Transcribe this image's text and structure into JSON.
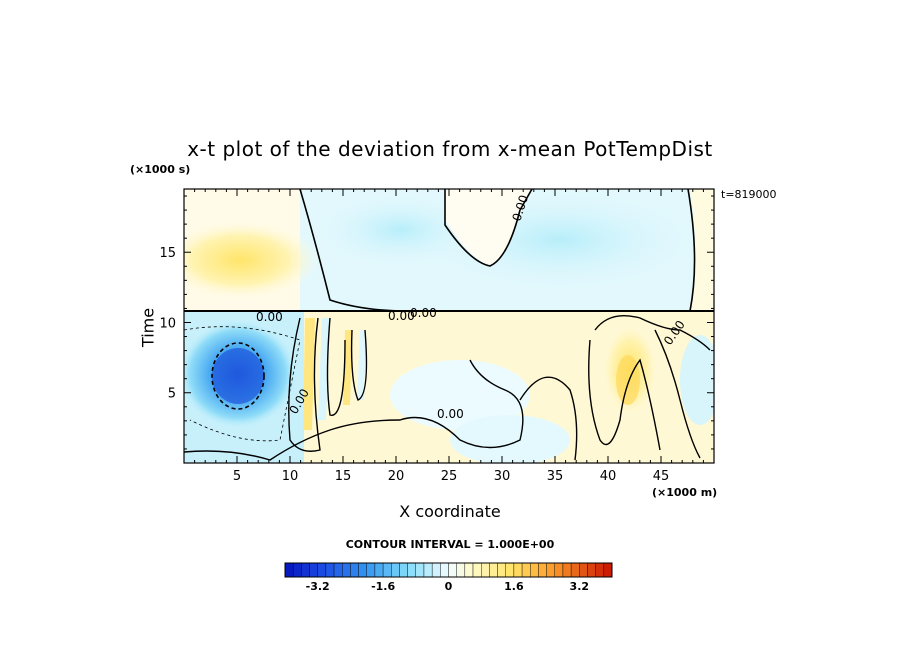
{
  "chart_data": {
    "type": "heatmap",
    "title": "x-t plot of the deviation from x-mean PotTempDist",
    "xlabel": "X coordinate",
    "ylabel": "Time",
    "x_unit": "(×1000 m)",
    "y_unit": "(×1000 s)",
    "timestamp": "t=819000",
    "xlim": [
      0,
      50
    ],
    "ylim": [
      0,
      19.5
    ],
    "x_ticks": [
      "5",
      "10",
      "15",
      "20",
      "25",
      "30",
      "35",
      "40",
      "45"
    ],
    "y_ticks": [
      "5",
      "10",
      "15"
    ],
    "contour_interval": "CONTOUR INTERVAL = 1.000E+00",
    "contour_labels": [
      "0.00",
      "0.00",
      "0.00",
      "0.00",
      "0.00",
      "0.00",
      "0.00"
    ],
    "colorbar": {
      "range": [
        -4,
        4
      ],
      "tick_labels": [
        "-3.2",
        "-1.6",
        "0",
        "1.6",
        "3.2"
      ],
      "tick_values": [
        -3.2,
        -1.6,
        0,
        1.6,
        3.2
      ]
    },
    "colors": {
      "cold": "#0a2fd6",
      "cool": "#3fb5f0",
      "neutral": "#f4fcff",
      "warm": "#fff2a8",
      "hot": "#d81e00"
    }
  }
}
